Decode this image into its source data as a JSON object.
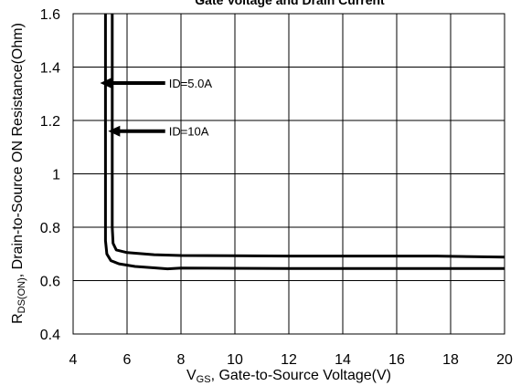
{
  "chart_data": {
    "type": "line",
    "title": "Gate Voltage and Drain Current",
    "xlabel": {
      "main": "V",
      "sub": "GS",
      "rest": ", Gate-to-Source Voltage(V)"
    },
    "ylabel": {
      "main": "R",
      "sub": "DS(ON)",
      "rest": ", Drain-to-Source ON Resistance(Ohm)"
    },
    "xlim": [
      4,
      20
    ],
    "ylim": [
      0.4,
      1.6
    ],
    "xticks": [
      4,
      6,
      8,
      10,
      12,
      14,
      16,
      18,
      20
    ],
    "xtick_labels": [
      "4",
      "6",
      "8",
      "10",
      "12",
      "14",
      "16",
      "18",
      "20"
    ],
    "yticks": [
      0.4,
      0.6,
      0.8,
      1.0,
      1.2,
      1.4,
      1.6
    ],
    "ytick_labels": [
      "0.4",
      "0.6",
      "0.8",
      "1",
      "1.2",
      "1.4",
      "1.6"
    ],
    "grid": true,
    "series": [
      {
        "label": "ID=5.0A",
        "x": [
          5.45,
          5.45,
          5.48,
          5.6,
          6.0,
          7.0,
          8.0,
          12.0,
          17.5,
          20.0
        ],
        "y": [
          1.6,
          0.8,
          0.74,
          0.715,
          0.705,
          0.697,
          0.694,
          0.692,
          0.692,
          0.688
        ]
      },
      {
        "label": "ID=10A",
        "x": [
          5.2,
          5.2,
          5.25,
          5.4,
          5.7,
          6.3,
          7.0,
          7.5,
          8.0,
          12.0,
          16.0,
          20.0
        ],
        "y": [
          1.6,
          0.75,
          0.7,
          0.675,
          0.663,
          0.653,
          0.648,
          0.644,
          0.647,
          0.645,
          0.645,
          0.645
        ]
      }
    ],
    "annotations": [
      {
        "text": "ID=5.0A",
        "arrow_tip": {
          "x": 5.0,
          "y": 1.34
        },
        "text_at": {
          "x": 7.55,
          "y": 1.34
        }
      },
      {
        "text": "ID=10A",
        "arrow_tip": {
          "x": 5.3,
          "y": 1.16
        },
        "text_at": {
          "x": 7.55,
          "y": 1.16
        }
      }
    ]
  }
}
